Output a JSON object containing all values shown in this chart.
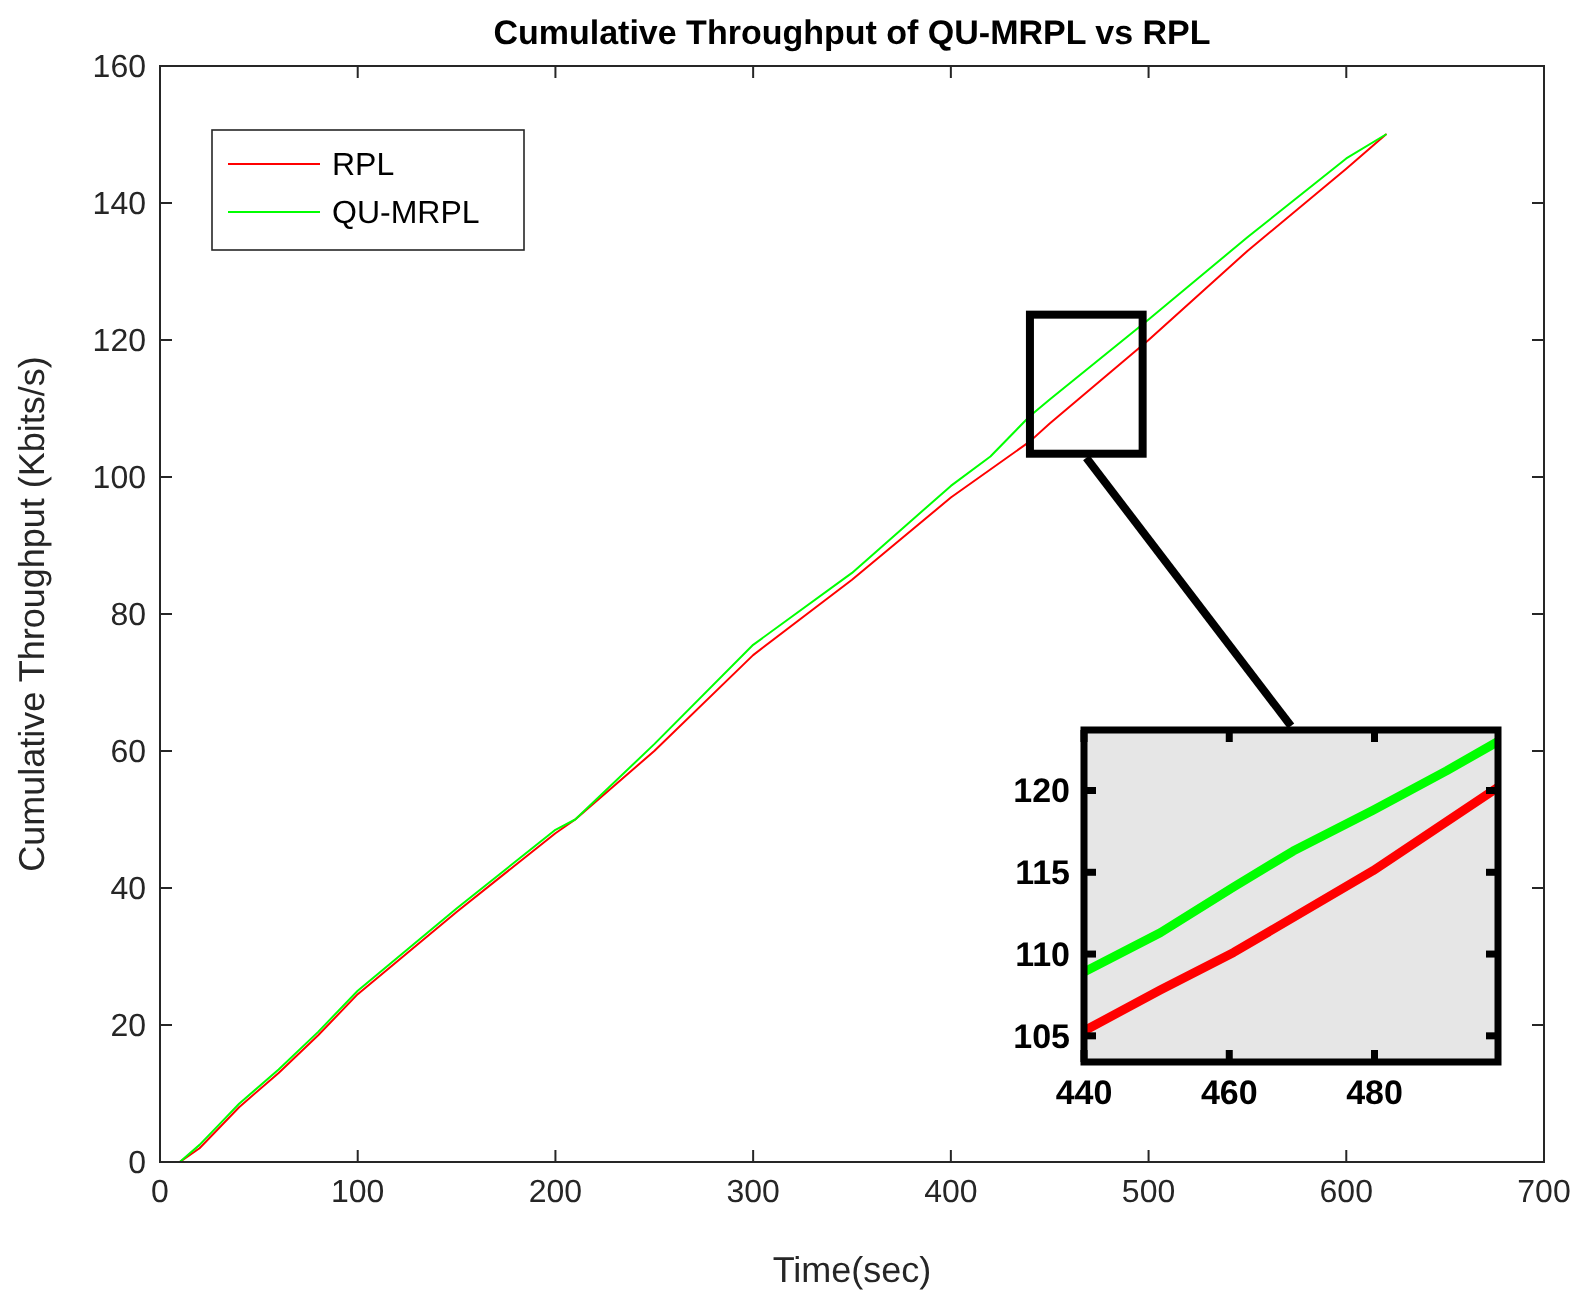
{
  "chart_data": [
    {
      "type": "line",
      "title": "Cumulative Throughput of QU-MRPL vs RPL",
      "xlabel": "Time(sec)",
      "ylabel": "Cumulative Throughput (Kbits/s)",
      "xlim": [
        0,
        700
      ],
      "ylim": [
        0,
        160
      ],
      "xticks": [
        0,
        100,
        200,
        300,
        400,
        500,
        600,
        700
      ],
      "yticks": [
        0,
        20,
        40,
        60,
        80,
        100,
        120,
        140,
        160
      ],
      "legend": "top left",
      "grid": false,
      "series": [
        {
          "name": "RPL",
          "color": "#ff0000",
          "x": [
            10,
            20,
            30,
            40,
            60,
            80,
            100,
            150,
            200,
            210,
            250,
            300,
            350,
            400,
            440,
            450,
            500,
            550,
            600,
            620
          ],
          "values": [
            0,
            2,
            5,
            8,
            13,
            18.5,
            24.5,
            36.5,
            48,
            50,
            60,
            74,
            85,
            97,
            105.2,
            107.8,
            120,
            133,
            145,
            150
          ]
        },
        {
          "name": "QU-MRPL",
          "color": "#00ff00",
          "x": [
            10,
            20,
            30,
            40,
            60,
            80,
            100,
            150,
            200,
            210,
            250,
            300,
            350,
            400,
            420,
            440,
            450,
            500,
            550,
            600,
            620
          ],
          "values": [
            0,
            2.5,
            5.5,
            8.5,
            13.5,
            19,
            25,
            37,
            48.5,
            50,
            61,
            75.5,
            86,
            98.7,
            103,
            108.9,
            111.3,
            123,
            135,
            146.5,
            150
          ]
        }
      ]
    },
    {
      "type": "line",
      "xlim": [
        440,
        497
      ],
      "ylim": [
        103.4,
        123.7
      ],
      "xticks": [
        440,
        460,
        480
      ],
      "yticks": [
        105,
        110,
        115,
        120
      ],
      "grid": false,
      "series": [
        {
          "color": "#ff0000",
          "x": [
            440,
            450.5,
            460.6,
            479.8,
            497
          ],
          "values": [
            105.3,
            107.8,
            110.1,
            115.1,
            120.2
          ]
        },
        {
          "color": "#00ff00",
          "x": [
            440,
            450.5,
            460.6,
            468.8,
            479.8,
            489.9,
            497
          ],
          "values": [
            108.9,
            111.3,
            114.1,
            116.3,
            118.8,
            121.2,
            123
          ]
        }
      ]
    }
  ]
}
